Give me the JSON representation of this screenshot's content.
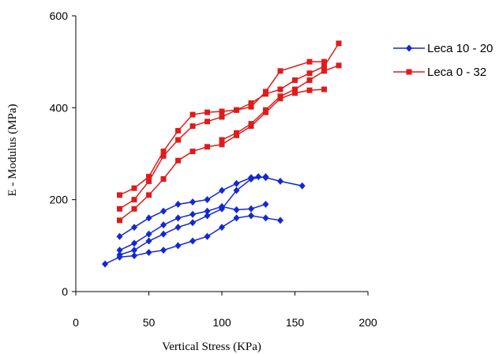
{
  "chart_data": {
    "type": "line",
    "xlabel": "Vertical Stress (KPa)",
    "ylabel": "E - Modulus (MPa)",
    "xlim": [
      0,
      200
    ],
    "ylim": [
      0,
      600
    ],
    "xticks": [
      0,
      50,
      100,
      150,
      200
    ],
    "yticks": [
      0,
      200,
      400,
      600
    ],
    "grid": false,
    "legend_position": "top-right",
    "series": [
      {
        "name": "Leca 10 - 20",
        "color": "#1428d2",
        "marker": "diamond",
        "lines": [
          [
            [
              30,
              120
            ],
            [
              40,
              140
            ],
            [
              50,
              160
            ],
            [
              60,
              175
            ],
            [
              70,
              190
            ],
            [
              80,
              195
            ],
            [
              90,
              200
            ],
            [
              100,
              220
            ],
            [
              110,
              235
            ],
            [
              120,
              248
            ],
            [
              125,
              250
            ],
            [
              130,
              248
            ],
            [
              140,
              240
            ],
            [
              155,
              230
            ]
          ],
          [
            [
              30,
              90
            ],
            [
              40,
              105
            ],
            [
              50,
              125
            ],
            [
              60,
              145
            ],
            [
              70,
              160
            ],
            [
              80,
              168
            ],
            [
              90,
              175
            ],
            [
              100,
              185
            ],
            [
              110,
              178
            ],
            [
              120,
              180
            ],
            [
              130,
              190
            ]
          ],
          [
            [
              30,
              80
            ],
            [
              40,
              90
            ],
            [
              50,
              110
            ],
            [
              60,
              125
            ],
            [
              70,
              140
            ],
            [
              80,
              150
            ],
            [
              90,
              165
            ],
            [
              100,
              180
            ],
            [
              110,
              220
            ],
            [
              120,
              245
            ],
            [
              130,
              250
            ]
          ],
          [
            [
              20,
              60
            ],
            [
              30,
              75
            ],
            [
              40,
              78
            ],
            [
              50,
              85
            ],
            [
              60,
              90
            ],
            [
              70,
              100
            ],
            [
              80,
              110
            ],
            [
              90,
              120
            ],
            [
              100,
              140
            ],
            [
              110,
              160
            ],
            [
              120,
              165
            ],
            [
              130,
              160
            ],
            [
              140,
              155
            ]
          ]
        ]
      },
      {
        "name": "Leca 0 - 32",
        "color": "#e01b1b",
        "marker": "square",
        "lines": [
          [
            [
              30,
              210
            ],
            [
              40,
              225
            ],
            [
              50,
              250
            ],
            [
              60,
              305
            ],
            [
              70,
              350
            ],
            [
              80,
              385
            ],
            [
              90,
              390
            ],
            [
              100,
              392
            ],
            [
              110,
              395
            ],
            [
              120,
              402
            ],
            [
              130,
              435
            ],
            [
              140,
              480
            ],
            [
              160,
              500
            ],
            [
              170,
              500
            ]
          ],
          [
            [
              30,
              180
            ],
            [
              40,
              200
            ],
            [
              50,
              240
            ],
            [
              60,
              295
            ],
            [
              70,
              330
            ],
            [
              80,
              360
            ],
            [
              90,
              370
            ],
            [
              100,
              380
            ],
            [
              110,
              395
            ],
            [
              120,
              410
            ],
            [
              130,
              430
            ],
            [
              140,
              440
            ],
            [
              150,
              460
            ],
            [
              160,
              475
            ],
            [
              170,
              490
            ],
            [
              180,
              540
            ]
          ],
          [
            [
              30,
              155
            ],
            [
              40,
              180
            ],
            [
              50,
              210
            ],
            [
              60,
              245
            ],
            [
              70,
              285
            ],
            [
              80,
              305
            ],
            [
              90,
              315
            ],
            [
              100,
              320
            ],
            [
              110,
              340
            ],
            [
              120,
              360
            ],
            [
              130,
              390
            ],
            [
              140,
              420
            ],
            [
              150,
              432
            ],
            [
              160,
              438
            ],
            [
              170,
              440
            ]
          ],
          [
            [
              100,
              330
            ],
            [
              110,
              345
            ],
            [
              120,
              365
            ],
            [
              130,
              395
            ],
            [
              140,
              425
            ],
            [
              150,
              440
            ],
            [
              160,
              460
            ],
            [
              170,
              480
            ],
            [
              180,
              492
            ]
          ]
        ]
      }
    ]
  }
}
